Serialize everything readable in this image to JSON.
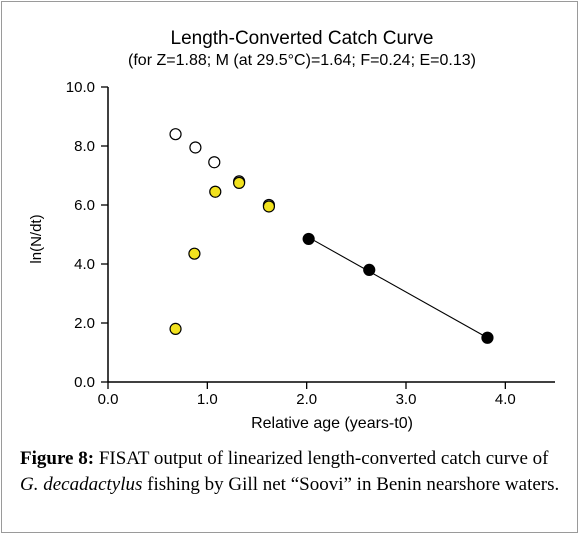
{
  "chart_data": {
    "type": "scatter",
    "title": "Length-Converted Catch Curve",
    "subtitle": "(for Z=1.88; M (at 29.5°C)=1.64; F=0.24; E=0.13)",
    "xlabel": "Relative age (years-t0)",
    "ylabel": "ln(N/dt)",
    "xlim": [
      0.0,
      4.5
    ],
    "ylim": [
      0.0,
      10.0
    ],
    "x_ticks": [
      "0.0",
      "1.0",
      "2.0",
      "3.0",
      "4.0"
    ],
    "y_ticks": [
      "0.0",
      "2.0",
      "4.0",
      "6.0",
      "8.0",
      "10.0"
    ],
    "grid": false,
    "series": [
      {
        "style": "open",
        "color": "#ffffff",
        "x": [
          0.68,
          0.88,
          1.07,
          1.32,
          1.62
        ],
        "y": [
          8.4,
          7.95,
          7.45,
          6.8,
          6.0
        ]
      },
      {
        "style": "yellow",
        "color": "#f2e21e",
        "x": [
          0.68,
          0.87,
          1.08,
          1.32,
          1.62
        ],
        "y": [
          1.8,
          4.35,
          6.45,
          6.75,
          5.95
        ]
      },
      {
        "style": "filled",
        "color": "#000000",
        "x": [
          2.02,
          2.63,
          3.82
        ],
        "y": [
          4.85,
          3.8,
          1.5
        ]
      }
    ],
    "regression_line": {
      "x": [
        2.02,
        3.82
      ],
      "y": [
        4.9,
        1.5
      ]
    }
  },
  "caption": {
    "label": "Figure 8:",
    "text_1": " FISAT output of linearized length-converted catch curve of ",
    "species": "G. decadactylus",
    "text_2": " fishing by Gill net “Soovi” in Benin nearshore waters."
  }
}
